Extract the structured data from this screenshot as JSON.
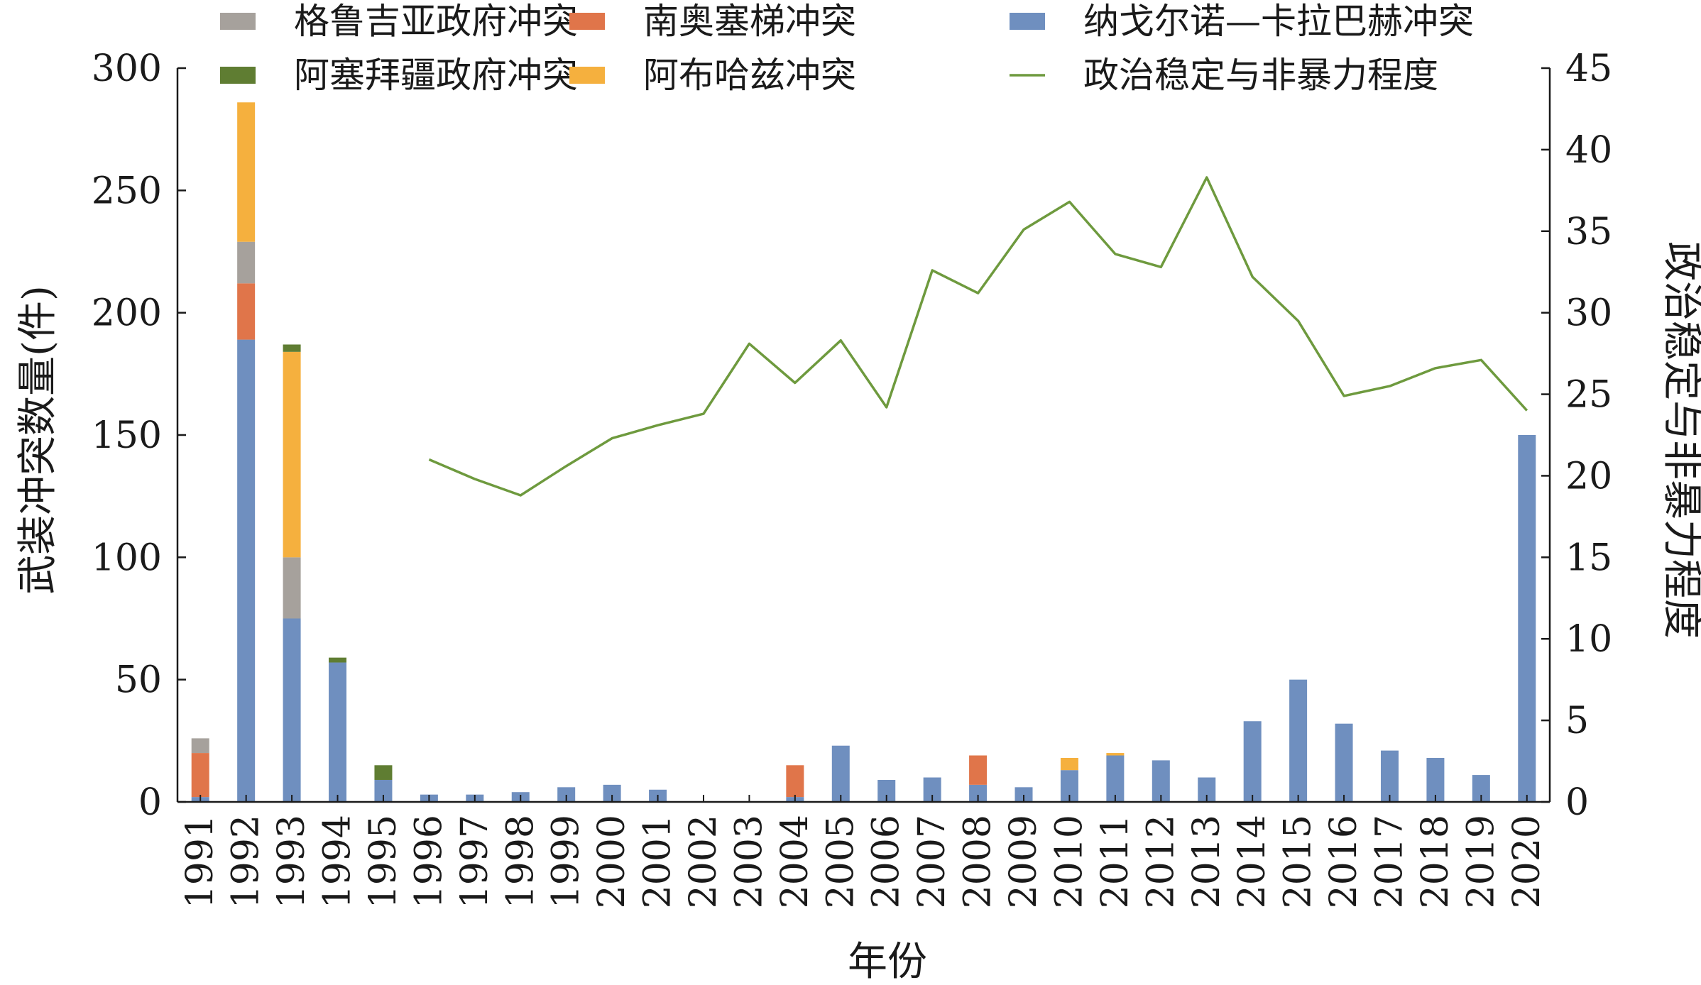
{
  "chart_data": {
    "type": "bar",
    "stacked": true,
    "xlabel": "年份",
    "ylabel": "武装冲突数量(件)",
    "y2label": "政治稳定与非暴力程度",
    "ylim": [
      0,
      300
    ],
    "y2lim": [
      0,
      45
    ],
    "yticks": [
      "0",
      "50",
      "100",
      "150",
      "200",
      "250",
      "300"
    ],
    "y2ticks": [
      "0",
      "5",
      "10",
      "15",
      "20",
      "25",
      "30",
      "35",
      "40",
      "45"
    ],
    "categories": [
      "1991",
      "1992",
      "1993",
      "1994",
      "1995",
      "1996",
      "1997",
      "1998",
      "1999",
      "2000",
      "2001",
      "2002",
      "2003",
      "2004",
      "2005",
      "2006",
      "2007",
      "2008",
      "2009",
      "2010",
      "2011",
      "2012",
      "2013",
      "2014",
      "2015",
      "2016",
      "2017",
      "2018",
      "2019",
      "2020"
    ],
    "series": [
      {
        "name": "纳戈尔诺—卡拉巴赫冲突",
        "color": "#6f8fbf",
        "values": [
          2,
          189,
          75,
          57,
          9,
          3,
          3,
          4,
          6,
          7,
          5,
          0,
          0,
          2,
          23,
          9,
          10,
          7,
          6,
          13,
          19,
          17,
          10,
          33,
          50,
          32,
          21,
          18,
          11,
          150
        ]
      },
      {
        "name": "南奥塞梯冲突",
        "color": "#e0754a",
        "values": [
          18,
          23,
          0,
          0,
          0,
          0,
          0,
          0,
          0,
          0,
          0,
          0,
          0,
          13,
          0,
          0,
          0,
          12,
          0,
          0,
          0,
          0,
          0,
          0,
          0,
          0,
          0,
          0,
          0,
          0
        ]
      },
      {
        "name": "格鲁吉亚政府冲突",
        "color": "#a6a19c",
        "values": [
          6,
          17,
          25,
          0,
          0,
          0,
          0,
          0,
          0,
          0,
          0,
          0,
          0,
          0,
          0,
          0,
          0,
          0,
          0,
          0,
          0,
          0,
          0,
          0,
          0,
          0,
          0,
          0,
          0,
          0
        ]
      },
      {
        "name": "阿布哈兹冲突",
        "color": "#f5b03e",
        "values": [
          0,
          57,
          84,
          0,
          0,
          0,
          0,
          0,
          0,
          0,
          0,
          0,
          0,
          0,
          0,
          0,
          0,
          0,
          0,
          5,
          1,
          0,
          0,
          0,
          0,
          0,
          0,
          0,
          0,
          0
        ]
      },
      {
        "name": "阿塞拜疆政府冲突",
        "color": "#5f7d32",
        "values": [
          0,
          0,
          3,
          2,
          6,
          0,
          0,
          0,
          0,
          0,
          0,
          0,
          0,
          0,
          0,
          0,
          0,
          0,
          0,
          0,
          0,
          0,
          0,
          0,
          0,
          0,
          0,
          0,
          0,
          0
        ]
      }
    ],
    "line_series": {
      "name": "政治稳定与非暴力程度",
      "color": "#6e9a3e",
      "axis": "right",
      "values": [
        null,
        null,
        null,
        null,
        null,
        21.0,
        19.8,
        18.8,
        20.6,
        22.3,
        23.1,
        23.8,
        28.1,
        25.7,
        28.3,
        24.2,
        32.6,
        31.2,
        35.1,
        36.8,
        33.6,
        32.8,
        38.3,
        32.2,
        29.5,
        24.9,
        25.5,
        26.6,
        27.1,
        24.0
      ]
    },
    "legend": {
      "placement": "top",
      "order": [
        "格鲁吉亚政府冲突",
        "南奥塞梯冲突",
        "纳戈尔诺—卡拉巴赫冲突",
        "阿塞拜疆政府冲突",
        "阿布哈兹冲突",
        "政治稳定与非暴力程度"
      ]
    },
    "grid": false
  }
}
